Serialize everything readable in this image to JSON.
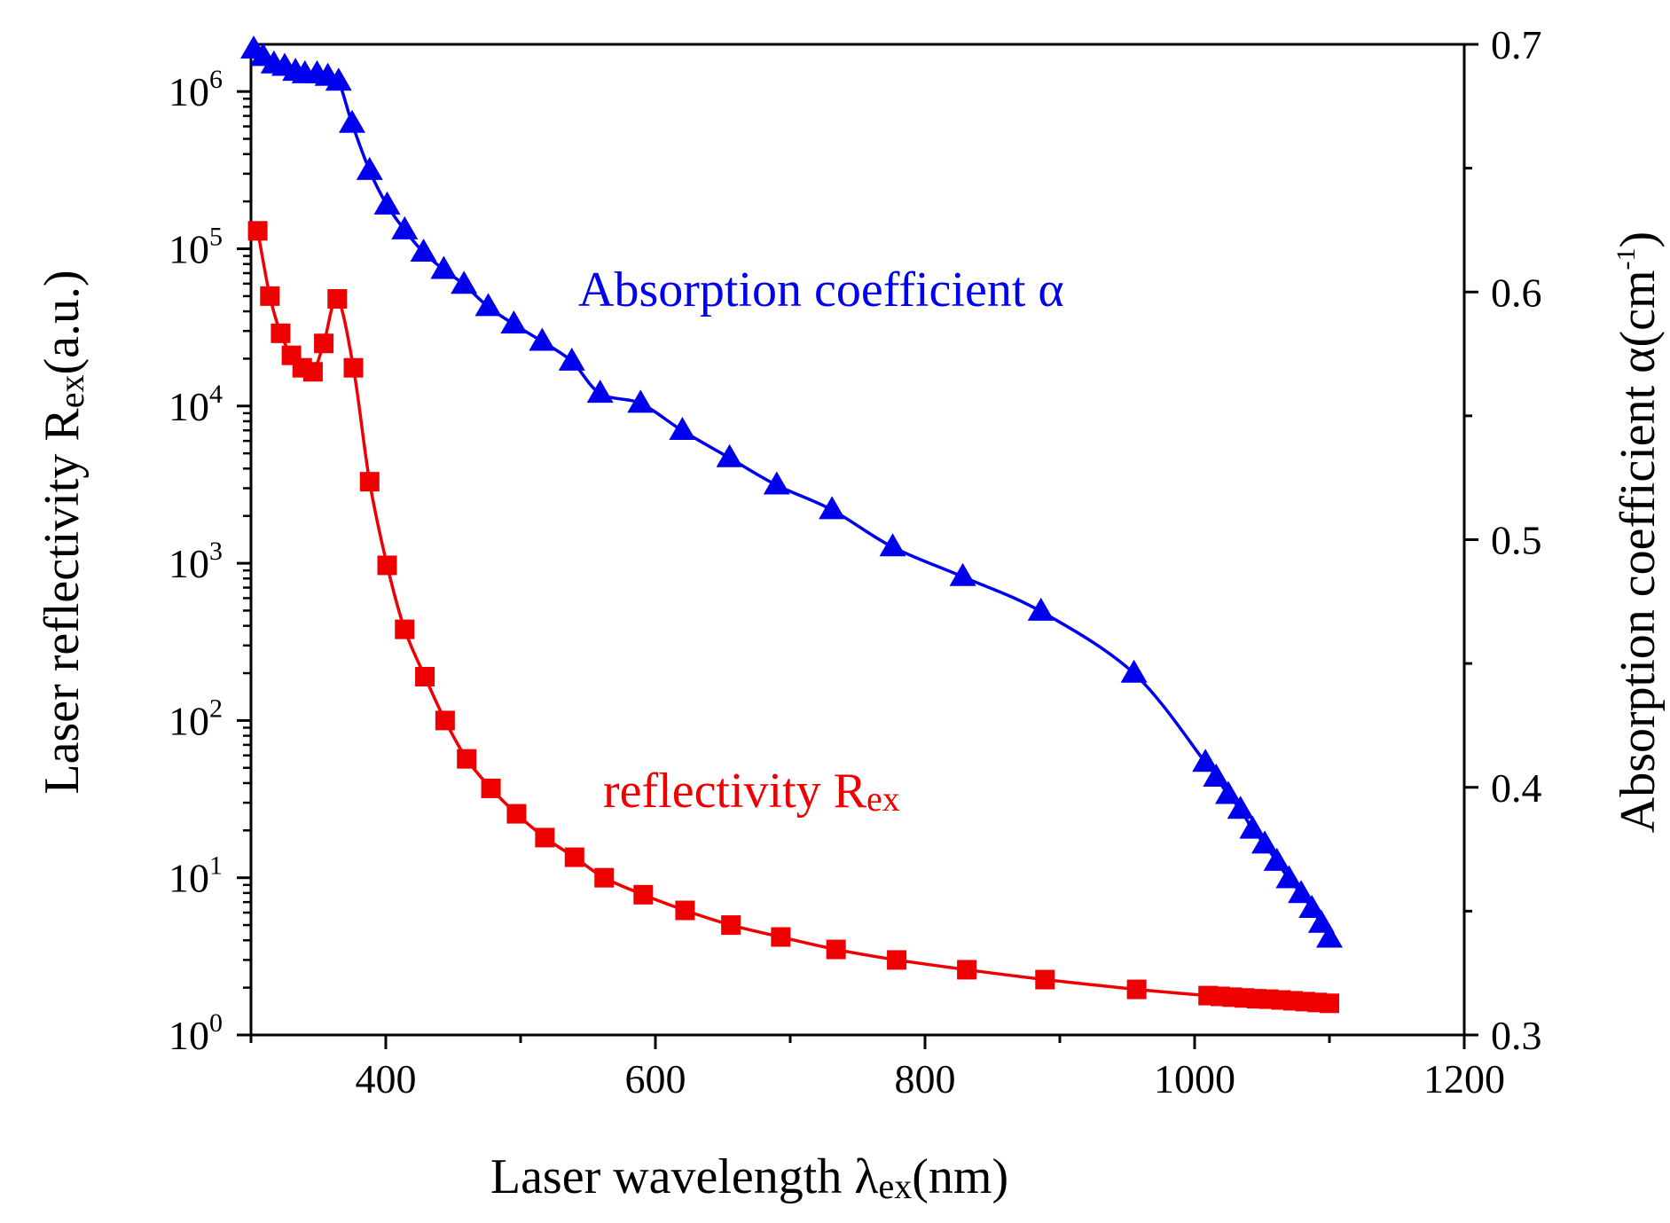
{
  "chart_data": {
    "type": "line",
    "title": "",
    "xlabel": "Laser wavelength λex(nm)",
    "xlabel_parts": {
      "main": "Laser wavelength λ",
      "sub": "ex",
      "tail": "(nm)"
    },
    "ylabel_left": "Laser reflectivity Rex(a.u.)",
    "ylabel_left_parts": {
      "main": "Laser reflectivity R",
      "sub": "ex",
      "tail": "(a.u.)"
    },
    "ylabel_right": "Absorption coefficient α(cm-1)",
    "ylabel_right_parts": {
      "main": "Absorption coefficient α(cm",
      "sup": "-1",
      "tail": ")"
    },
    "xlim": [
      300,
      1200
    ],
    "xticks": [
      "400",
      "600",
      "800",
      "1000",
      "1200"
    ],
    "xtick_values": [
      400,
      600,
      800,
      1000,
      1200
    ],
    "ylim_left_log10": [
      0,
      6.3
    ],
    "yticks_left": [
      {
        "base": "10",
        "exp": "0"
      },
      {
        "base": "10",
        "exp": "1"
      },
      {
        "base": "10",
        "exp": "2"
      },
      {
        "base": "10",
        "exp": "3"
      },
      {
        "base": "10",
        "exp": "4"
      },
      {
        "base": "10",
        "exp": "5"
      },
      {
        "base": "10",
        "exp": "6"
      }
    ],
    "ylim_right": [
      0.3,
      0.7
    ],
    "yticks_right": [
      "0.3",
      "0.4",
      "0.5",
      "0.6",
      "0.7"
    ],
    "ytick_right_values": [
      0.3,
      0.4,
      0.5,
      0.6,
      0.7
    ],
    "grid": false,
    "annotations": {
      "alpha": "Absorption coefficient α",
      "reflectivity_main": "reflectivity R",
      "reflectivity_sub": "ex"
    },
    "series": [
      {
        "name": "Absorption coefficient α",
        "axis": "right",
        "marker": "triangle",
        "color": "#0000ee",
        "x": [
          302,
          309,
          317,
          325,
          333,
          340,
          349,
          357,
          365,
          375,
          388,
          401,
          414,
          428,
          443,
          458,
          476,
          495,
          516,
          538,
          559,
          589,
          620,
          655,
          690,
          731,
          776,
          828,
          886,
          955,
          1008,
          1016,
          1025,
          1034,
          1043,
          1052,
          1061,
          1070,
          1079,
          1087,
          1094,
          1100
        ],
        "y": [
          0.698,
          0.695,
          0.692,
          0.691,
          0.689,
          0.688,
          0.688,
          0.687,
          0.685,
          0.668,
          0.649,
          0.635,
          0.625,
          0.616,
          0.609,
          0.603,
          0.594,
          0.587,
          0.58,
          0.572,
          0.559,
          0.555,
          0.544,
          0.533,
          0.522,
          0.512,
          0.497,
          0.485,
          0.471,
          0.446,
          0.41,
          0.404,
          0.397,
          0.391,
          0.383,
          0.377,
          0.37,
          0.363,
          0.357,
          0.351,
          0.345,
          0.339
        ]
      },
      {
        "name": "reflectivity Rex",
        "axis": "left",
        "marker": "square",
        "color": "#ee0000",
        "x": [
          305,
          314,
          322,
          330,
          338,
          346,
          354,
          364,
          376,
          388,
          401,
          414,
          429,
          444,
          460,
          478,
          497,
          518,
          540,
          562,
          591,
          622,
          656,
          693,
          734,
          779,
          831,
          889,
          957,
          1010,
          1019,
          1028,
          1037,
          1046,
          1055,
          1064,
          1073,
          1082,
          1091,
          1100
        ],
        "y": [
          130000,
          50000,
          29000,
          21000,
          17500,
          16500,
          25000,
          48000,
          17500,
          3300,
          970,
          380,
          190,
          100,
          57,
          37,
          25.5,
          18,
          13.5,
          10,
          7.8,
          6.2,
          5,
          4.2,
          3.5,
          3,
          2.6,
          2.25,
          1.95,
          1.78,
          1.76,
          1.74,
          1.72,
          1.7,
          1.69,
          1.67,
          1.65,
          1.63,
          1.61,
          1.59
        ]
      }
    ]
  }
}
